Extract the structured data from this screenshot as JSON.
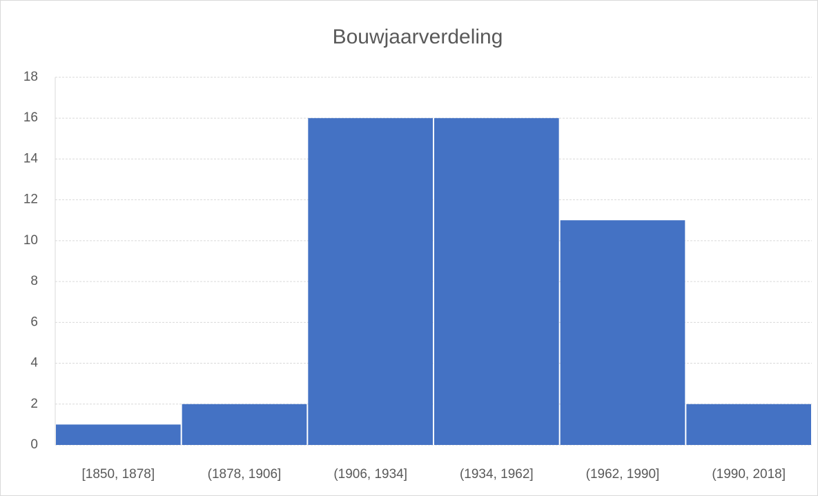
{
  "chart_data": {
    "type": "bar",
    "title": "Bouwjaarverdeling",
    "categories": [
      "[1850, 1878]",
      "(1878, 1906]",
      "(1906, 1934]",
      "(1934, 1962]",
      "(1962, 1990]",
      "(1990, 2018]"
    ],
    "values": [
      1,
      2,
      16,
      16,
      11,
      2
    ],
    "color": "#4472c4",
    "ylim": [
      0,
      18
    ],
    "yticks": [
      0,
      2,
      4,
      6,
      8,
      10,
      12,
      14,
      16,
      18
    ],
    "grid": true
  }
}
